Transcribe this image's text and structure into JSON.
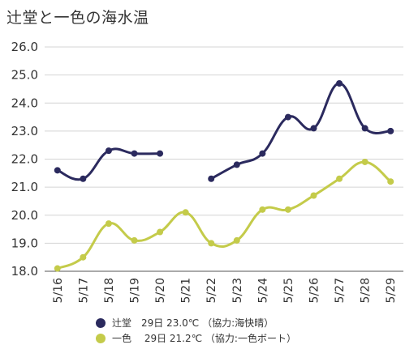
{
  "title": "辻堂と一色の海水温",
  "chart_data": {
    "type": "line",
    "title": "辻堂と一色の海水温",
    "xlabel": "",
    "ylabel": "",
    "categories": [
      "5/16",
      "5/17",
      "5/18",
      "5/19",
      "5/20",
      "5/21",
      "5/22",
      "5/23",
      "5/24",
      "5/25",
      "5/26",
      "5/27",
      "5/28",
      "5/29"
    ],
    "ylim": [
      18.0,
      26.0
    ],
    "yticks": [
      "18.0",
      "19.0",
      "20.0",
      "21.0",
      "22.0",
      "23.0",
      "24.0",
      "25.0",
      "26.0"
    ],
    "grid": true,
    "legend_position": "bottom",
    "series": [
      {
        "name": "辻堂",
        "color": "#2b2a5e",
        "values": [
          21.6,
          21.3,
          22.3,
          22.2,
          22.2,
          null,
          21.3,
          21.8,
          22.2,
          23.5,
          23.1,
          24.7,
          23.1,
          23.0
        ]
      },
      {
        "name": "一色",
        "color": "#c4cb4a",
        "values": [
          18.1,
          18.5,
          19.7,
          19.1,
          19.4,
          20.1,
          19.0,
          19.1,
          20.2,
          20.2,
          20.7,
          21.3,
          21.9,
          21.2
        ]
      }
    ]
  },
  "legend": [
    {
      "name": "辻堂",
      "text": "辻堂　29日 23.0℃ （協力:海快晴）",
      "color": "#2b2a5e"
    },
    {
      "name": "一色",
      "text": "一色　 29日 21.2℃ （協力:一色ボート）",
      "color": "#c4cb4a"
    }
  ]
}
